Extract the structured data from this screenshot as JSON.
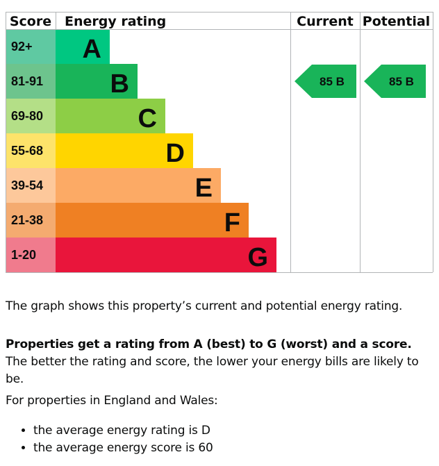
{
  "chart_data": {
    "type": "table",
    "headers": {
      "score": "Score",
      "rating": "Energy rating",
      "current": "Current",
      "potential": "Potential"
    },
    "bands": [
      {
        "score": "92+",
        "letter": "A",
        "color": "#00c781",
        "score_bg": "#5fc9a2"
      },
      {
        "score": "81-91",
        "letter": "B",
        "color": "#19b459",
        "score_bg": "#6dc48d"
      },
      {
        "score": "69-80",
        "letter": "C",
        "color": "#8dce46",
        "score_bg": "#b4df87"
      },
      {
        "score": "55-68",
        "letter": "D",
        "color": "#ffd500",
        "score_bg": "#fde36a"
      },
      {
        "score": "39-54",
        "letter": "E",
        "color": "#fcaa65",
        "score_bg": "#fdc89b"
      },
      {
        "score": "21-38",
        "letter": "F",
        "color": "#ef8023",
        "score_bg": "#f4ab70"
      },
      {
        "score": "1-20",
        "letter": "G",
        "color": "#e9153b",
        "score_bg": "#f07b8d"
      }
    ],
    "current": {
      "score": 85,
      "letter": "B",
      "label": "85  B",
      "color": "#19b459"
    },
    "potential": {
      "score": 85,
      "letter": "B",
      "label": "85  B",
      "color": "#19b459"
    }
  },
  "text": {
    "p1": "The graph shows this property’s current and potential energy rating.",
    "p2_bold": "Properties get a rating from A (best) to G (worst) and a score.",
    "p2_rest": " The better the rating and score, the lower your energy bills are likely to be.",
    "p3": "For properties in England and Wales:",
    "bullets": [
      "the average energy rating is D",
      "the average energy score is 60"
    ]
  }
}
